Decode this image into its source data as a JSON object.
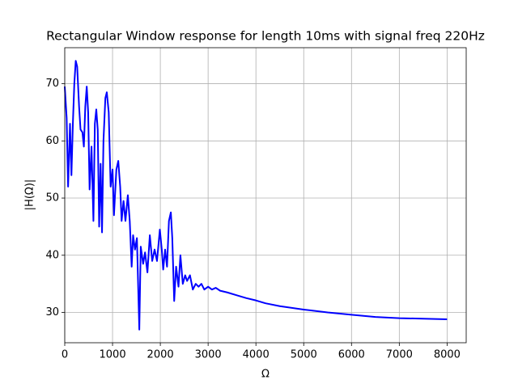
{
  "chart_data": {
    "type": "line",
    "title": "Rectangular Window response for length 10ms with signal freq 220Hz",
    "x_label": "Ω",
    "y_label": "|H(Ω)|",
    "x": [
      0,
      40,
      70,
      110,
      140,
      170,
      200,
      230,
      260,
      300,
      330,
      370,
      400,
      430,
      460,
      490,
      520,
      560,
      600,
      630,
      660,
      690,
      720,
      750,
      780,
      810,
      850,
      880,
      920,
      960,
      1000,
      1030,
      1080,
      1120,
      1160,
      1190,
      1230,
      1270,
      1320,
      1360,
      1400,
      1430,
      1470,
      1510,
      1560,
      1590,
      1640,
      1680,
      1730,
      1780,
      1830,
      1880,
      1930,
      1990,
      2030,
      2060,
      2100,
      2140,
      2180,
      2220,
      2250,
      2290,
      2330,
      2380,
      2420,
      2470,
      2520,
      2560,
      2620,
      2680,
      2740,
      2800,
      2860,
      2920,
      3000,
      3080,
      3160,
      3250,
      3400,
      3600,
      3800,
      4000,
      4200,
      4500,
      5000,
      5500,
      6000,
      6500,
      7000,
      7500,
      8000
    ],
    "series": [
      {
        "name": "|H(Ω)|",
        "color": "#0000ff",
        "values": [
          69.5,
          64,
          52,
          63,
          54,
          63,
          70,
          74,
          73,
          66,
          62,
          61.5,
          59,
          66,
          69.5,
          65,
          51.5,
          59,
          46,
          63,
          65.5,
          62,
          45,
          56,
          44,
          60,
          67.5,
          68.5,
          65,
          52,
          55,
          47,
          55,
          56.5,
          52,
          46,
          49.5,
          46,
          50.5,
          46,
          38,
          43.5,
          41,
          43,
          27,
          41.5,
          38.5,
          40.5,
          37,
          43.5,
          39,
          41,
          39,
          44.5,
          41,
          37.5,
          41,
          38,
          46,
          47.5,
          43,
          32,
          38,
          34.5,
          40,
          35,
          36.5,
          35.5,
          36.5,
          34,
          35,
          34.5,
          35,
          34,
          34.5,
          34,
          34.3,
          33.8,
          33.5,
          33,
          32.5,
          32.1,
          31.6,
          31.1,
          30.5,
          30,
          29.6,
          29.2,
          29,
          28.9,
          28.8
        ]
      }
    ],
    "xlim": [
      0,
      8400
    ],
    "ylim": [
      24.7,
      76.3
    ],
    "xticks": [
      0,
      1000,
      2000,
      3000,
      4000,
      5000,
      6000,
      7000,
      8000
    ],
    "yticks": [
      30,
      40,
      50,
      60,
      70
    ],
    "grid": true
  }
}
